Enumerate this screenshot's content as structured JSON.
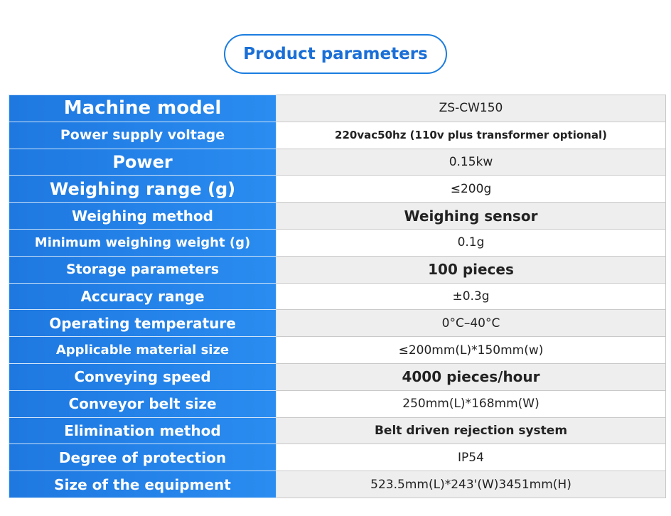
{
  "title": "Product parameters",
  "table": {
    "rows": [
      [
        "Machine model",
        "ZS-CW150"
      ],
      [
        "Power supply voltage",
        "220vac50hz (110v plus transformer optional)"
      ],
      [
        "Power",
        "0.15kw"
      ],
      [
        "Weighing range (g)",
        "≤200g"
      ],
      [
        "Weighing method",
        "Weighing sensor"
      ],
      [
        "Minimum weighing weight (g)",
        "0.1g"
      ],
      [
        "Storage parameters",
        "100 pieces"
      ],
      [
        "Accuracy range",
        "±0.3g"
      ],
      [
        "Operating temperature",
        "0°C–40°C"
      ],
      [
        "Applicable material size",
        "≤200mm(L)*150mm(w)"
      ],
      [
        "Conveying speed",
        "4000 pieces/hour"
      ],
      [
        "Conveyor belt size",
        "250mm(L)*168mm(W)"
      ],
      [
        "Elimination method",
        "Belt driven rejection system"
      ],
      [
        "Degree of protection",
        "IP54"
      ],
      [
        "Size of the equipment",
        "523.5mm(L)*243'(W)3451mm(H)"
      ]
    ]
  }
}
